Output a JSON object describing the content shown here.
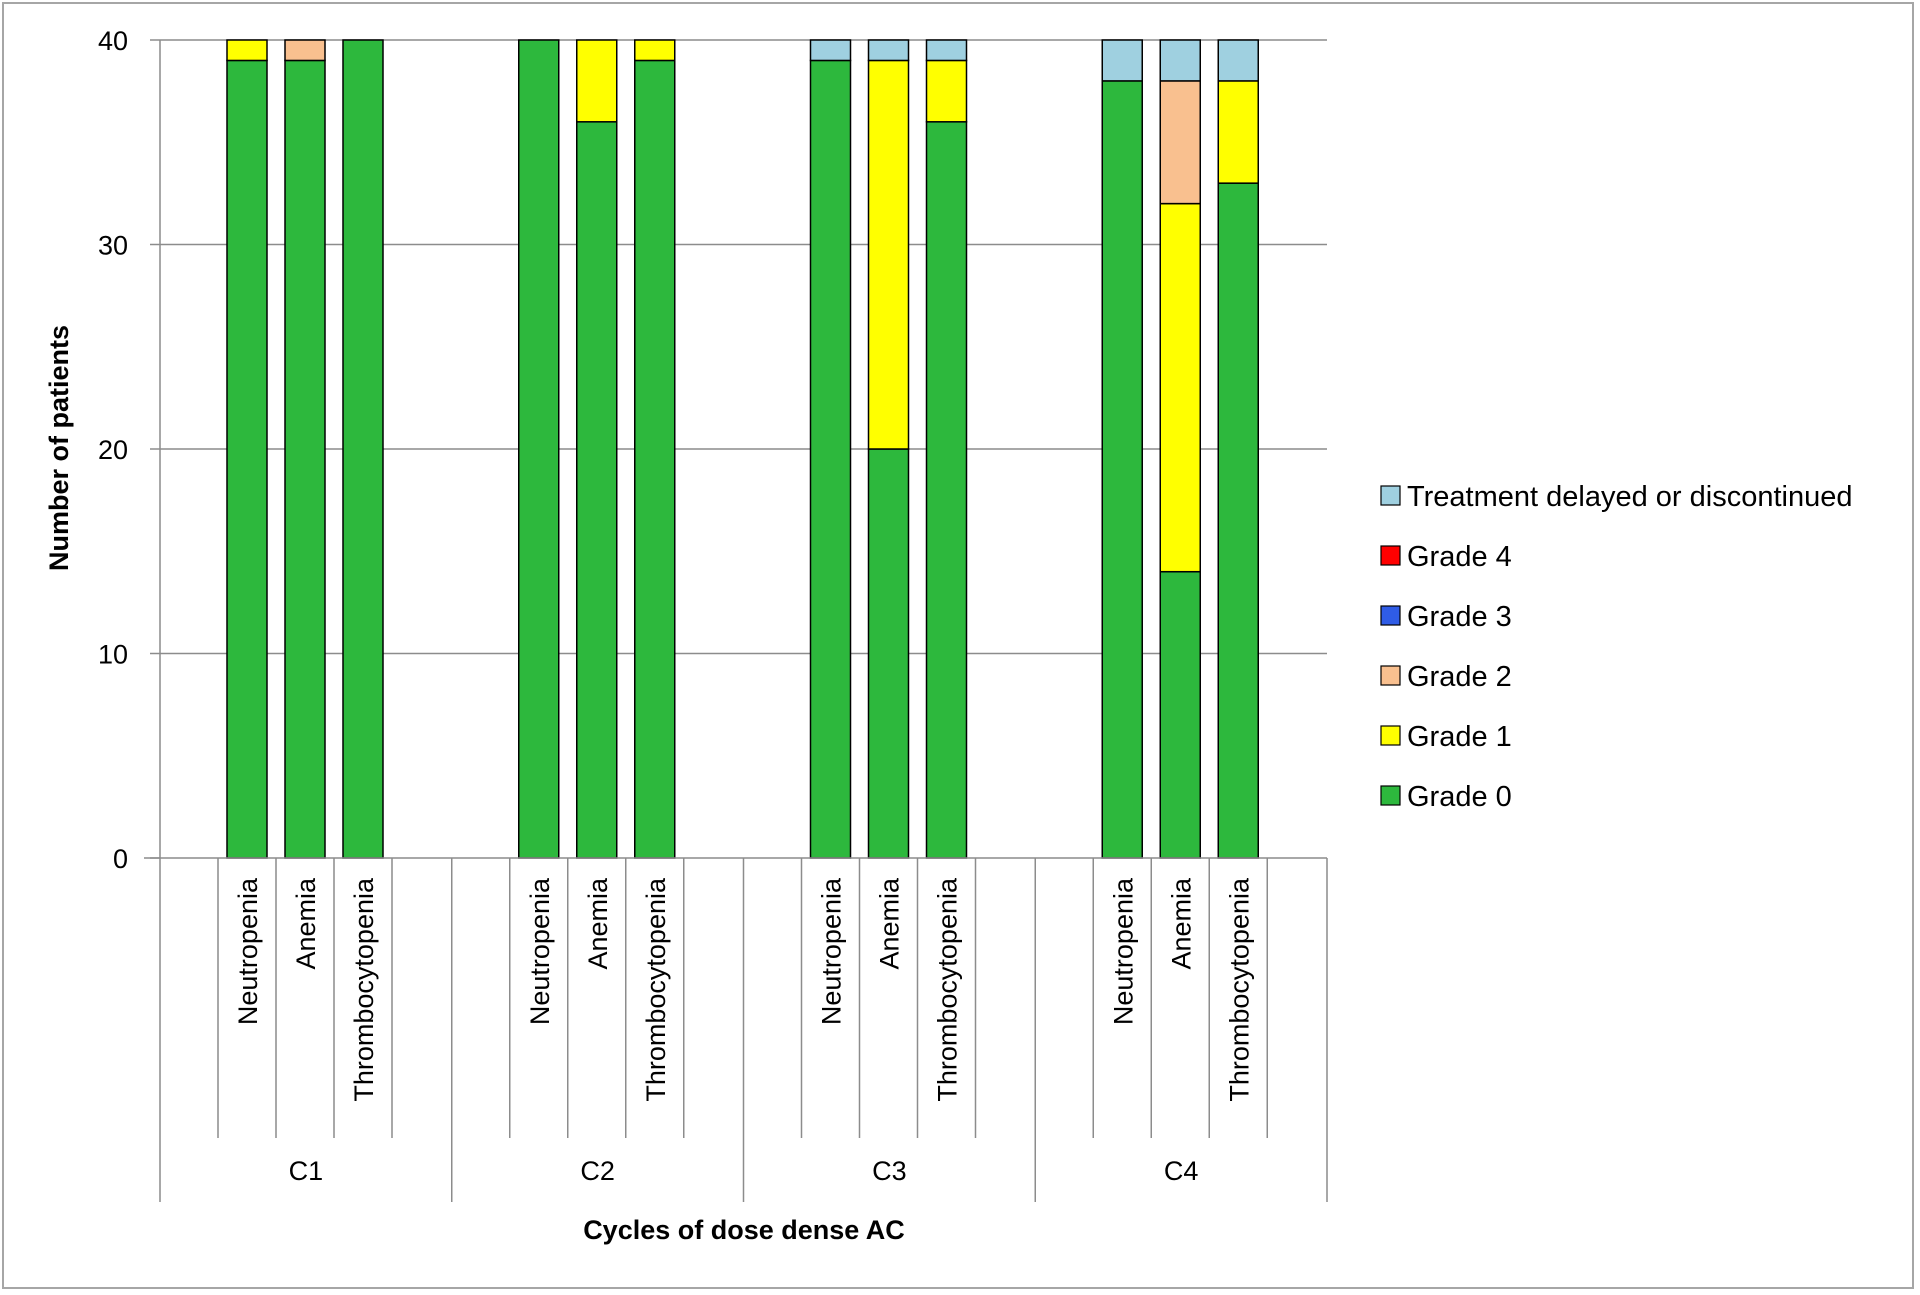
{
  "chart_data": {
    "type": "bar",
    "stacked": true,
    "title": "",
    "xlabel": "Cycles of dose dense AC",
    "ylabel": "Number of patients",
    "ylim": [
      0,
      40
    ],
    "yticks": [
      0,
      10,
      20,
      30,
      40
    ],
    "grid": true,
    "legend_position": "right",
    "groups": [
      "C1",
      "C2",
      "C3",
      "C4"
    ],
    "categories": [
      "Neutropenia",
      "Anemia",
      "Thrombocytopenia"
    ],
    "series": [
      {
        "name": "Grade 0",
        "color": "#2db83d",
        "values": [
          [
            39,
            39,
            40
          ],
          [
            40,
            36,
            39
          ],
          [
            39,
            20,
            36
          ],
          [
            38,
            14,
            33
          ]
        ]
      },
      {
        "name": "Grade 1",
        "color": "#ffff00",
        "values": [
          [
            1,
            0,
            0
          ],
          [
            0,
            4,
            1
          ],
          [
            0,
            19,
            3
          ],
          [
            0,
            18,
            5
          ]
        ]
      },
      {
        "name": "Grade 2",
        "color": "#f9c08f",
        "values": [
          [
            0,
            1,
            0
          ],
          [
            0,
            0,
            0
          ],
          [
            0,
            0,
            0
          ],
          [
            0,
            6,
            0
          ]
        ]
      },
      {
        "name": "Grade 3",
        "color": "#2f5ce6",
        "values": [
          [
            0,
            0,
            0
          ],
          [
            0,
            0,
            0
          ],
          [
            0,
            0,
            0
          ],
          [
            0,
            0,
            0
          ]
        ]
      },
      {
        "name": "Grade 4",
        "color": "#ff0000",
        "values": [
          [
            0,
            0,
            0
          ],
          [
            0,
            0,
            0
          ],
          [
            0,
            0,
            0
          ],
          [
            0,
            0,
            0
          ]
        ]
      },
      {
        "name": "Treatment delayed or discontinued",
        "color": "#9fd0e0",
        "values": [
          [
            0,
            0,
            0
          ],
          [
            0,
            0,
            0
          ],
          [
            1,
            1,
            1
          ],
          [
            2,
            2,
            2
          ]
        ]
      }
    ]
  }
}
